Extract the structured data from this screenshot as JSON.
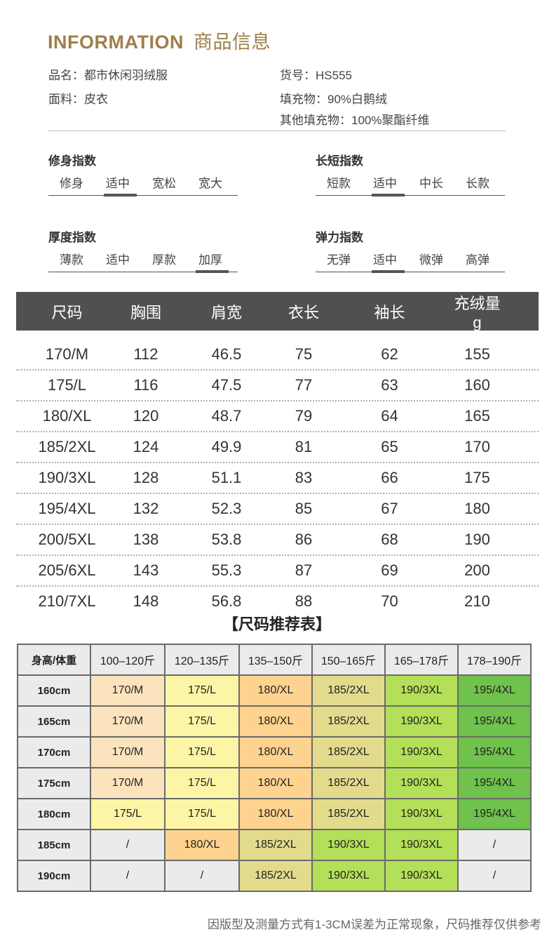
{
  "header": {
    "title_en": "INFORMATION",
    "title_cn": "商品信息",
    "accent_color": "#a07e4b"
  },
  "info": {
    "name": "品名：都市休闲羽绒服",
    "item_no": "货号：HS555",
    "material": "面料：皮衣",
    "filling": "填充物：90%白鹅绒",
    "other_filling": "其他填充物：100%聚酯纤维"
  },
  "indices": [
    {
      "title": "修身指数",
      "options": [
        "修身",
        "适中",
        "宽松",
        "宽大"
      ],
      "selected": 1
    },
    {
      "title": "长短指数",
      "options": [
        "短款",
        "适中",
        "中长",
        "长款"
      ],
      "selected": 1
    },
    {
      "title": "厚度指数",
      "options": [
        "薄款",
        "适中",
        "厚款",
        "加厚"
      ],
      "selected": 3
    },
    {
      "title": "弹力指数",
      "options": [
        "无弹",
        "适中",
        "微弹",
        "高弹"
      ],
      "selected": 1
    }
  ],
  "size_table": {
    "headers": [
      "尺码",
      "胸围",
      "肩宽",
      "衣长",
      "袖长",
      "充绒量g"
    ],
    "rows": [
      [
        "170/M",
        "112",
        "46.5",
        "75",
        "62",
        "155"
      ],
      [
        "175/L",
        "116",
        "47.5",
        "77",
        "63",
        "160"
      ],
      [
        "180/XL",
        "120",
        "48.7",
        "79",
        "64",
        "165"
      ],
      [
        "185/2XL",
        "124",
        "49.9",
        "81",
        "65",
        "170"
      ],
      [
        "190/3XL",
        "128",
        "51.1",
        "83",
        "66",
        "175"
      ],
      [
        "195/4XL",
        "132",
        "52.3",
        "85",
        "67",
        "180"
      ],
      [
        "200/5XL",
        "138",
        "53.8",
        "86",
        "68",
        "190"
      ],
      [
        "205/6XL",
        "143",
        "55.3",
        "87",
        "69",
        "200"
      ],
      [
        "210/7XL",
        "148",
        "56.8",
        "88",
        "70",
        "210"
      ]
    ]
  },
  "recommend": {
    "title": "【尺码推荐表】",
    "corner": "身高/体重",
    "weights": [
      "100–120斤",
      "120–135斤",
      "135–150斤",
      "150–165斤",
      "165–178斤",
      "178–190斤"
    ],
    "rows": [
      {
        "height": "160cm",
        "cells": [
          "170/M",
          "175/L",
          "180/XL",
          "185/2XL",
          "190/3XL",
          "195/4XL"
        ]
      },
      {
        "height": "165cm",
        "cells": [
          "170/M",
          "175/L",
          "180/XL",
          "185/2XL",
          "190/3XL",
          "195/4XL"
        ]
      },
      {
        "height": "170cm",
        "cells": [
          "170/M",
          "175/L",
          "180/XL",
          "185/2XL",
          "190/3XL",
          "195/4XL"
        ]
      },
      {
        "height": "175cm",
        "cells": [
          "170/M",
          "175/L",
          "180/XL",
          "185/2XL",
          "190/3XL",
          "195/4XL"
        ]
      },
      {
        "height": "180cm",
        "cells": [
          "175/L",
          "175/L",
          "180/XL",
          "185/2XL",
          "190/3XL",
          "195/4XL"
        ]
      },
      {
        "height": "185cm",
        "cells": [
          "/",
          "180/XL",
          "185/2XL",
          "190/3XL",
          "190/3XL",
          "/"
        ]
      },
      {
        "height": "190cm",
        "cells": [
          "/",
          "/",
          "185/2XL",
          "190/3XL",
          "190/3XL",
          "/"
        ]
      }
    ],
    "colors": {
      "170/M": "#fbe3bd",
      "175/L": "#fdf5a6",
      "180/XL": "#fdd38f",
      "185/2XL": "#e2db8c",
      "190/3XL": "#b3df59",
      "195/4XL": "#6fc24b",
      "/": "#ebebeb"
    }
  },
  "note": "因版型及测量方式有1-3CM误差为正常现象，尺码推荐仅供参考"
}
